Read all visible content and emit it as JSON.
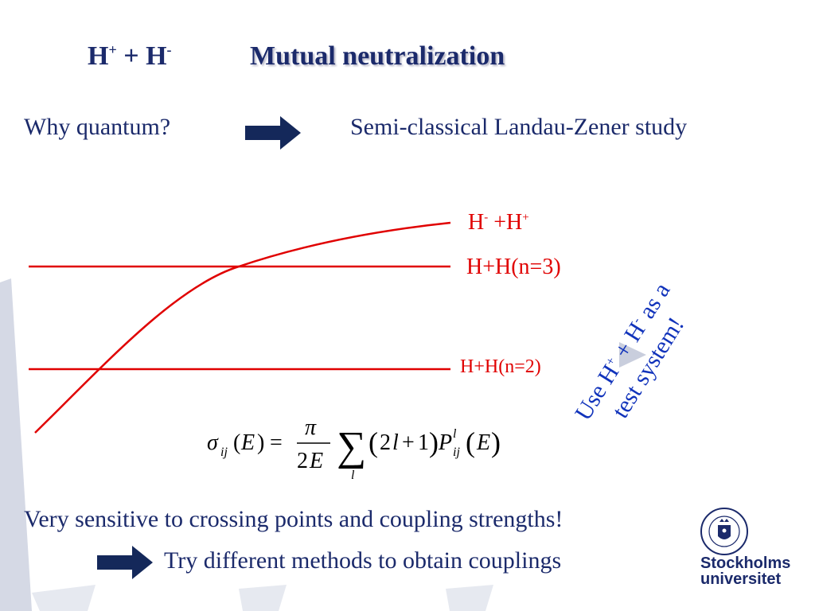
{
  "title": {
    "formula_a": "H",
    "formula_a_sup": "+",
    "formula_plus": " + H",
    "formula_b_sup": "-",
    "main": "Mutual neutralization"
  },
  "row1": {
    "left": "Why quantum?",
    "right": "Semi-classical Landau-Zener study"
  },
  "curves": {
    "ionic": {
      "base": "H",
      "sup1": "-",
      "mid": " +H",
      "sup2": "+"
    },
    "n3": "H+H(n=3)",
    "n2": "H+H(n=2)"
  },
  "side_note": {
    "line1_a": "Use H",
    "line1_sup1": "+",
    "line1_b": " + H",
    "line1_sup2": "-",
    "line1_c": " as a",
    "line2": "test system!"
  },
  "bottom": {
    "sensitive": "Very sensitive to crossing points and coupling strengths!",
    "try": "Try different methods to obtain couplings"
  },
  "brand": {
    "line1": "Stockholms",
    "line2": "universitet"
  },
  "colors": {
    "navy": "#1b2a6b",
    "red": "#e00000",
    "blue": "#1133bb",
    "watermark": "#c9cedd"
  }
}
